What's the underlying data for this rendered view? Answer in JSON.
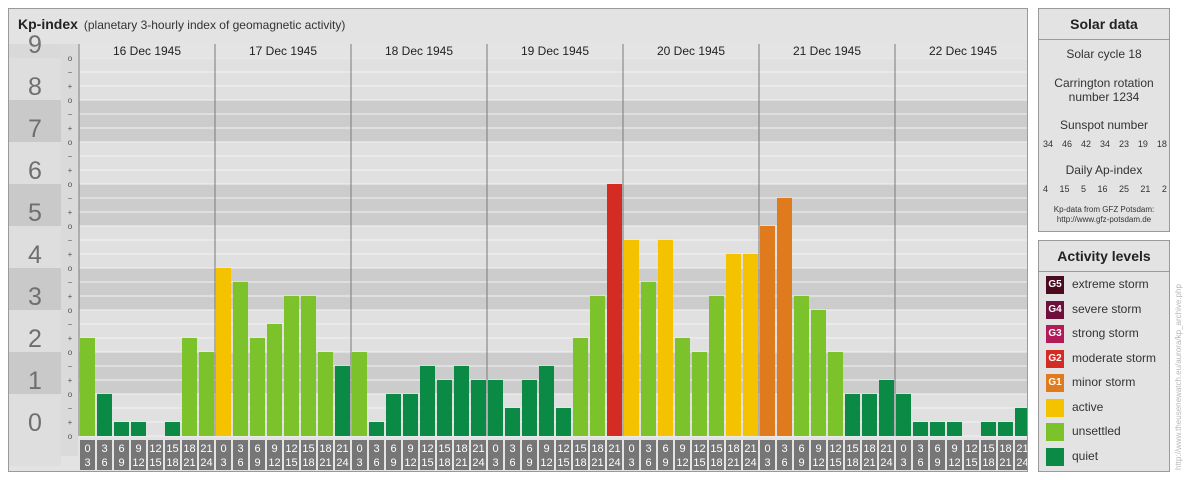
{
  "header": {
    "title": "Kp-index",
    "subtitle": "(planetary 3-hourly index of geomagnetic activity)"
  },
  "chart_data": {
    "type": "bar",
    "title": "Kp-index",
    "subtitle": "(planetary 3-hourly index of geomagnetic activity)",
    "ylim": [
      0,
      9
    ],
    "y_ticks": [
      "0",
      "1",
      "2",
      "3",
      "4",
      "5",
      "6",
      "7",
      "8",
      "9"
    ],
    "y_minor_marks": [
      "+",
      "o",
      "−"
    ],
    "days": [
      "16 Dec 1945",
      "17 Dec 1945",
      "18 Dec 1945",
      "19 Dec 1945",
      "20 Dec 1945",
      "21 Dec 1945",
      "22 Dec 1945"
    ],
    "interval_start": [
      "0",
      "3",
      "6",
      "9",
      "12",
      "15",
      "18",
      "21"
    ],
    "interval_end": [
      "3",
      "6",
      "9",
      "12",
      "15",
      "18",
      "21",
      "24"
    ],
    "series": [
      {
        "values": [
          2.333,
          1.0,
          0.333,
          0.333,
          0,
          0.333,
          2.333,
          2.0,
          4.0,
          3.667,
          2.333,
          2.667,
          3.333,
          3.333,
          2.0,
          1.667,
          2.0,
          0.333,
          1.0,
          1.0,
          1.667,
          1.333,
          1.667,
          1.333,
          1.333,
          0.667,
          1.333,
          1.667,
          0.667,
          2.333,
          3.333,
          6.0,
          4.667,
          3.667,
          4.667,
          2.333,
          2.0,
          3.333,
          4.333,
          4.333,
          5.0,
          5.667,
          3.333,
          3.0,
          2.0,
          1.0,
          1.0,
          1.333,
          1.0,
          0.333,
          0.333,
          0.333,
          0,
          0.333,
          0.333,
          0.667
        ]
      }
    ],
    "grid": true,
    "legend": "right"
  },
  "solar": {
    "title": "Solar data",
    "cycle": "Solar cycle 18",
    "carrington_line1": "Carrington rotation",
    "carrington_line2": "number 1234",
    "sunspot_title": "Sunspot number",
    "sunspot_values": [
      "34",
      "46",
      "42",
      "34",
      "23",
      "19",
      "18"
    ],
    "ap_title": "Daily Ap-index",
    "ap_values": [
      "4",
      "15",
      "5",
      "16",
      "25",
      "21",
      "2"
    ],
    "source_line1": "Kp-data from GFZ Potsdam:",
    "source_line2": "http://www.gfz-potsdam.de"
  },
  "levels": {
    "title": "Activity levels",
    "items": [
      {
        "badge": "G5",
        "label": "extreme storm",
        "color": "#4a0a20"
      },
      {
        "badge": "G4",
        "label": "severe storm",
        "color": "#6e0f3d"
      },
      {
        "badge": "G3",
        "label": "strong storm",
        "color": "#b21a58"
      },
      {
        "badge": "G2",
        "label": "moderate storm",
        "color": "#d42c22"
      },
      {
        "badge": "G1",
        "label": "minor storm",
        "color": "#e07b1d"
      },
      {
        "badge": "",
        "label": "active",
        "color": "#f5c200"
      },
      {
        "badge": "",
        "label": "unsettled",
        "color": "#7cc22a"
      },
      {
        "badge": "",
        "label": "quiet",
        "color": "#0a8a45"
      }
    ]
  },
  "credit": "http://www.theusenewatch.eu/aurora/kp_archive.php"
}
